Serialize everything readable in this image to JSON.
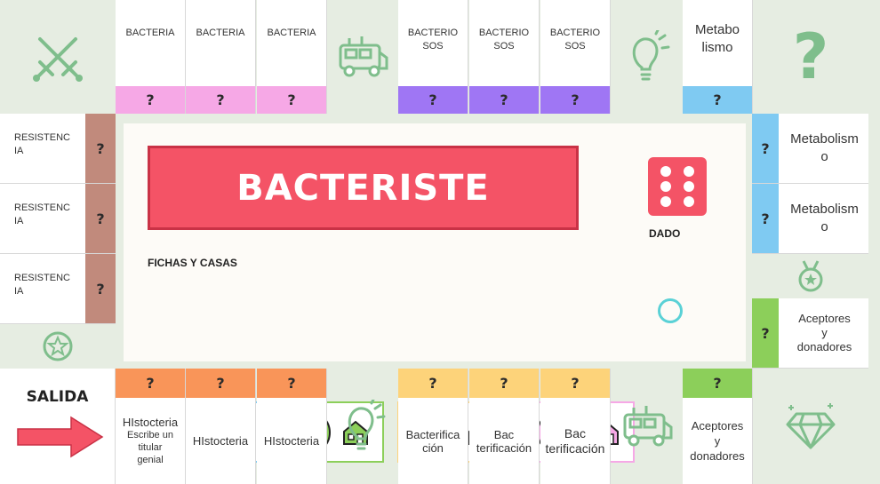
{
  "board": {
    "title": "BACTERISTE",
    "dice_label": "DADO",
    "pieces_label": "FICHAS Y CASAS",
    "start_label": "SALIDA",
    "question_mark": "?"
  },
  "colors": {
    "background": "#e6ede2",
    "bacteria": "#f6a8e6",
    "bacteriosos": "#9f76f4",
    "metabolismo": "#7fcaf2",
    "resistencia": "#c18a7c",
    "aceptores": "#8ccf5a",
    "histocteria": "#f99559",
    "bacterificacion": "#fdd37a",
    "title_box": "#f45366",
    "dice": "#f45366",
    "deco_icons": "#7fbe8c"
  },
  "top_row": [
    {
      "label": "BACTERIA",
      "color": "bacteria"
    },
    {
      "label": "BACTERIA",
      "color": "bacteria"
    },
    {
      "label": "BACTERIA",
      "color": "bacteria"
    },
    {
      "label": "BACTERIO\nSOS",
      "color": "bacteriosos"
    },
    {
      "label": "BACTERIO\nSOS",
      "color": "bacteriosos"
    },
    {
      "label": "BACTERIO\nSOS",
      "color": "bacteriosos"
    },
    {
      "label": "Metabo\nlismo",
      "color": "metabolismo"
    }
  ],
  "left_column": [
    {
      "label": "RESISTENC\nIA"
    },
    {
      "label": "RESISTENC\nIA"
    },
    {
      "label": "RESISTENC\nIA"
    }
  ],
  "right_column": [
    {
      "label": "Metabolism\no"
    },
    {
      "label": "Metabolism\no"
    },
    {
      "label": "Aceptores\ny\ndonadores"
    }
  ],
  "bottom_row": [
    {
      "label": "HIstocteria",
      "sub": "Escribe un\ntitular\ngenial"
    },
    {
      "label": "HIstocteria"
    },
    {
      "label": "HIstocteria"
    },
    {
      "label": "Bacterifica\nción"
    },
    {
      "label": "Bac\nterificación"
    },
    {
      "label": "Bac\nterificación"
    },
    {
      "label": "Aceptores\ny\ndonadores"
    }
  ],
  "players": [
    {
      "token": "sneaker-icon",
      "color": "#7fcaf2",
      "border": "#7fcaf2"
    },
    {
      "token": "robot-icon",
      "color": "#8ccf5a",
      "border": "#8ccf5a"
    },
    {
      "token": "cat-icon",
      "color": "#fdd37a",
      "border": "#fdd37a"
    },
    {
      "token": "ghost-icon",
      "color": "#f6a8e6",
      "border": "#f6a8e6"
    }
  ]
}
